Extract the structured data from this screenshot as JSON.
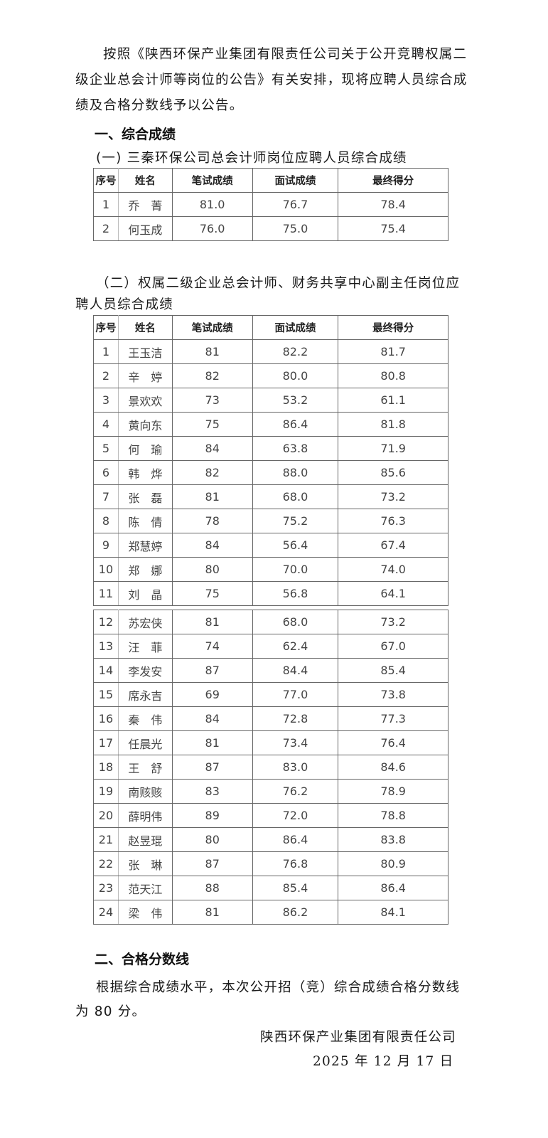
{
  "intro": {
    "line1": "按照《陕西环保产业集团有限责任公司关于公开竞聘权属二",
    "line2": "级企业总会计师等岗位的公告》有关安排，现将应聘人员综合成",
    "line3": "绩及合格分数线予以公告。"
  },
  "section1": {
    "heading": "一、综合成绩",
    "sub1_title": "(一) 三秦环保公司总会计师岗位应聘人员综合成绩",
    "headers": [
      "序号",
      "姓名",
      "笔试成绩",
      "面试成绩",
      "最终得分"
    ],
    "table1": [
      [
        "1",
        "乔　菁",
        "81.0",
        "76.7",
        "78.4"
      ],
      [
        "2",
        "何玉成",
        "76.0",
        "75.0",
        "75.4"
      ]
    ],
    "sub2_title_line1": "（二）权属二级企业总会计师、财务共享中心副主任岗位应",
    "sub2_title_line2": "聘人员综合成绩",
    "table2_part1": [
      [
        "1",
        "王玉洁",
        "81",
        "82.2",
        "81.7"
      ],
      [
        "2",
        "辛　婷",
        "82",
        "80.0",
        "80.8"
      ],
      [
        "3",
        "景欢欢",
        "73",
        "53.2",
        "61.1"
      ],
      [
        "4",
        "黄向东",
        "75",
        "86.4",
        "81.8"
      ],
      [
        "5",
        "何　瑜",
        "84",
        "63.8",
        "71.9"
      ],
      [
        "6",
        "韩　烨",
        "82",
        "88.0",
        "85.6"
      ],
      [
        "7",
        "张　磊",
        "81",
        "68.0",
        "73.2"
      ],
      [
        "8",
        "陈　倩",
        "78",
        "75.2",
        "76.3"
      ],
      [
        "9",
        "郑慧婷",
        "84",
        "56.4",
        "67.4"
      ],
      [
        "10",
        "郑　娜",
        "80",
        "70.0",
        "74.0"
      ],
      [
        "11",
        "刘　晶",
        "75",
        "56.8",
        "64.1"
      ]
    ],
    "table2_part2": [
      [
        "12",
        "苏宏侠",
        "81",
        "68.0",
        "73.2"
      ],
      [
        "13",
        "汪　菲",
        "74",
        "62.4",
        "67.0"
      ],
      [
        "14",
        "李发安",
        "87",
        "84.4",
        "85.4"
      ],
      [
        "15",
        "席永吉",
        "69",
        "77.0",
        "73.8"
      ],
      [
        "16",
        "秦　伟",
        "84",
        "72.8",
        "77.3"
      ],
      [
        "17",
        "任晨光",
        "81",
        "73.4",
        "76.4"
      ],
      [
        "18",
        "王　舒",
        "87",
        "83.0",
        "84.6"
      ],
      [
        "19",
        "南赅赅",
        "83",
        "76.2",
        "78.9"
      ],
      [
        "20",
        "薛明伟",
        "89",
        "72.0",
        "78.8"
      ],
      [
        "21",
        "赵昱琨",
        "80",
        "86.4",
        "83.8"
      ],
      [
        "22",
        "张　琳",
        "87",
        "76.8",
        "80.9"
      ],
      [
        "23",
        "范天江",
        "88",
        "85.4",
        "86.4"
      ],
      [
        "24",
        "梁　伟",
        "81",
        "86.2",
        "84.1"
      ]
    ]
  },
  "section2": {
    "heading": "二、合格分数线",
    "line1": "根据综合成绩水平，本次公开招（竞）综合成绩合格分数线",
    "line2": "为 80 分。"
  },
  "signature": {
    "org": "陕西环保产业集团有限责任公司",
    "date": "2025 年 12 月 17 日"
  }
}
